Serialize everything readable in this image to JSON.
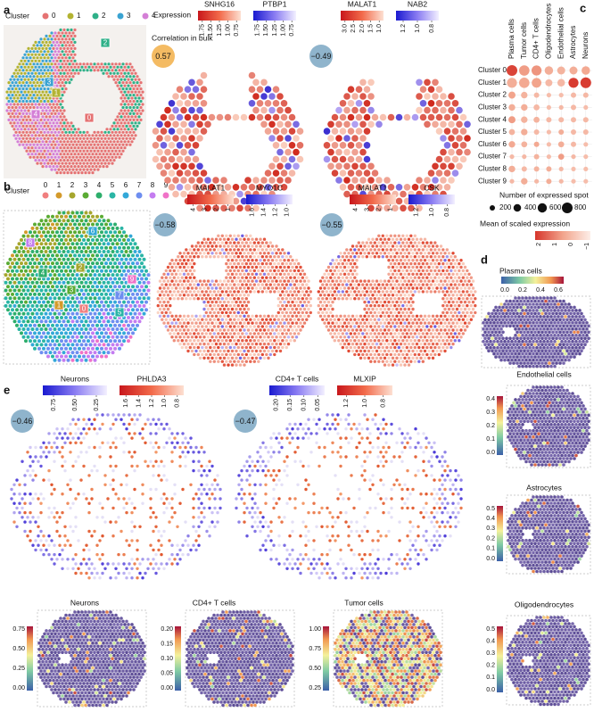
{
  "panel_a": {
    "letter": "a",
    "cluster_title": "Cluster",
    "clusters": [
      "0",
      "1",
      "2",
      "3",
      "4"
    ],
    "cluster_colors": [
      "#e57373",
      "#b3b332",
      "#2fb088",
      "#3aa3d2",
      "#d47fd6"
    ],
    "map_labels": [
      "2",
      "3",
      "1",
      "4",
      "0"
    ],
    "expression_title": "Expression",
    "correlation_title": "Correlation in bulk",
    "pairs": [
      {
        "genes": [
          {
            "name": "SNHG16",
            "scale": "red",
            "ticks": [
              "1.75",
              "1.50",
              "1.25",
              "1.00",
              "0.75"
            ]
          },
          {
            "name": "PTBP1",
            "scale": "blue",
            "ticks": [
              "1.75",
              "1.50",
              "1.25",
              "1.00",
              "0.75"
            ]
          }
        ],
        "correlation": "0.57",
        "circle_color": "#f4bb63"
      },
      {
        "genes": [
          {
            "name": "MALAT1",
            "scale": "red",
            "ticks": [
              "3.0",
              "2.5",
              "2.0",
              "1.5",
              "1.0"
            ]
          },
          {
            "name": "NAB2",
            "scale": "blue",
            "ticks": [
              "1.2",
              "1.0",
              "0.8"
            ]
          }
        ],
        "correlation": "−0.49",
        "circle_color": "#8fb4cc"
      }
    ]
  },
  "panel_b": {
    "letter": "b",
    "cluster_title": "Cluster",
    "clusters": [
      "0",
      "1",
      "2",
      "3",
      "4",
      "5",
      "6",
      "7",
      "8",
      "9"
    ],
    "cluster_colors": [
      "#f07f7f",
      "#d49a2b",
      "#a6a62d",
      "#5aab33",
      "#2dae6b",
      "#2ab5a5",
      "#33a8d8",
      "#6e8ef0",
      "#c47cf0",
      "#f072c8"
    ],
    "map_labels": [
      "8",
      "6",
      "2",
      "4",
      "9",
      "3",
      "7",
      "1",
      "0",
      "5"
    ],
    "pairs": [
      {
        "genes": [
          {
            "name": "MALAT1",
            "scale": "red",
            "ticks": [
              "4",
              "3",
              "2",
              "1"
            ]
          },
          {
            "name": "MYO1C",
            "scale": "blue",
            "ticks": [
              "1.6",
              "1.4",
              "1.2",
              "1.0"
            ]
          }
        ],
        "correlation": "−0.58",
        "circle_color": "#8fb4cc"
      },
      {
        "genes": [
          {
            "name": "MALAT1",
            "scale": "red",
            "ticks": [
              "4",
              "3",
              "2",
              "1"
            ]
          },
          {
            "name": "CSK",
            "scale": "blue",
            "ticks": [
              "1.2",
              "1.0",
              "0.8"
            ]
          }
        ],
        "correlation": "−0.55",
        "circle_color": "#8fb4cc"
      }
    ]
  },
  "panel_c": {
    "letter": "c",
    "cell_types": [
      "Plasma cells",
      "Tumor cells",
      "CD4+ T cells",
      "Oligodendrocytes",
      "Endothelial cells",
      "Astrocytes",
      "Neurons"
    ],
    "clusters": [
      "Cluster 0",
      "Cluster 1",
      "Cluster 2",
      "Cluster 3",
      "Cluster 4",
      "Cluster 5",
      "Cluster 6",
      "Cluster 7",
      "Cluster 8",
      "Cluster 9"
    ],
    "spot_counts": [
      [
        800,
        750,
        700,
        500,
        450,
        450,
        500
      ],
      [
        700,
        750,
        650,
        350,
        400,
        700,
        800
      ],
      [
        350,
        300,
        200,
        150,
        150,
        200,
        200
      ],
      [
        300,
        300,
        250,
        150,
        150,
        200,
        150
      ],
      [
        350,
        300,
        250,
        200,
        200,
        200,
        200
      ],
      [
        250,
        300,
        200,
        150,
        200,
        200,
        200
      ],
      [
        300,
        250,
        200,
        150,
        250,
        200,
        150
      ],
      [
        150,
        150,
        200,
        150,
        250,
        150,
        150
      ],
      [
        300,
        200,
        200,
        200,
        150,
        150,
        150
      ],
      [
        150,
        300,
        150,
        200,
        150,
        150,
        150
      ]
    ],
    "scaled_expression": [
      [
        1.8,
        0.6,
        0.7,
        0.3,
        0.2,
        0.3,
        0.4
      ],
      [
        0.3,
        0.4,
        0.5,
        0.1,
        0.1,
        1.9,
        1.9
      ],
      [
        0.5,
        0.2,
        0.1,
        0.0,
        0.0,
        0.1,
        0.1
      ],
      [
        0.3,
        0.3,
        0.1,
        0.0,
        0.1,
        0.1,
        0.0
      ],
      [
        0.6,
        0.2,
        0.2,
        0.1,
        0.1,
        0.1,
        0.1
      ],
      [
        0.2,
        0.3,
        0.1,
        0.0,
        0.3,
        0.1,
        0.1
      ],
      [
        0.4,
        0.2,
        0.4,
        0.0,
        0.3,
        0.1,
        0.0
      ],
      [
        0.1,
        0.1,
        0.2,
        0.0,
        0.6,
        0.1,
        0.0
      ],
      [
        0.3,
        0.1,
        0.2,
        0.3,
        0.1,
        0.0,
        0.0
      ],
      [
        0.1,
        0.3,
        0.1,
        0.3,
        0.1,
        0.0,
        0.0
      ]
    ],
    "size_title": "Number of expressed spot",
    "size_legend": [
      200,
      400,
      600,
      800
    ],
    "color_title": "Mean of scaled expression",
    "color_ticks": [
      "2",
      "1",
      "0",
      "−1"
    ],
    "color_range": [
      -1,
      2
    ]
  },
  "panel_d": {
    "letter": "d",
    "maps": [
      {
        "title": "Plasma cells",
        "ticks": [
          "0.0",
          "0.2",
          "0.4",
          "0.6"
        ]
      },
      {
        "title": "Endothelial cells",
        "ticks": [
          "0.0",
          "0.1",
          "0.2",
          "0.3",
          "0.4"
        ]
      },
      {
        "title": "Astrocytes",
        "ticks": [
          "0.0",
          "0.1",
          "0.2",
          "0.3",
          "0.4",
          "0.5"
        ]
      },
      {
        "title": "Oligodendrocytes",
        "ticks": [
          "0.0",
          "0.1",
          "0.2",
          "0.3",
          "0.4",
          "0.5"
        ]
      }
    ]
  },
  "panel_e": {
    "letter": "e",
    "pairs": [
      {
        "genes": [
          {
            "name": "Neurons",
            "scale": "blue",
            "ticks": [
              "0.75",
              "0.50",
              "0.25"
            ]
          },
          {
            "name": "PHLDA3",
            "scale": "red",
            "ticks": [
              "1.6",
              "1.4",
              "1.2",
              "1.0",
              "0.8"
            ]
          }
        ],
        "correlation": "−0.46",
        "circle_color": "#8fb4cc"
      },
      {
        "genes": [
          {
            "name": "CD4+ T cells",
            "scale": "blue",
            "ticks": [
              "0.20",
              "0.15",
              "0.10",
              "0.05"
            ]
          },
          {
            "name": "MLXIP",
            "scale": "red",
            "ticks": [
              "1.2",
              "1.0",
              "0.8"
            ]
          }
        ],
        "correlation": "−0.47",
        "circle_color": "#8fb4cc"
      }
    ],
    "maps": [
      {
        "title": "Neurons",
        "ticks": [
          "0.00",
          "0.25",
          "0.50",
          "0.75"
        ]
      },
      {
        "title": "CD4+ T cells",
        "ticks": [
          "0.00",
          "0.05",
          "0.10",
          "0.15",
          "0.20"
        ]
      },
      {
        "title": "Tumor cells",
        "ticks": [
          "0.25",
          "0.50",
          "0.75",
          "1.00"
        ]
      }
    ]
  }
}
